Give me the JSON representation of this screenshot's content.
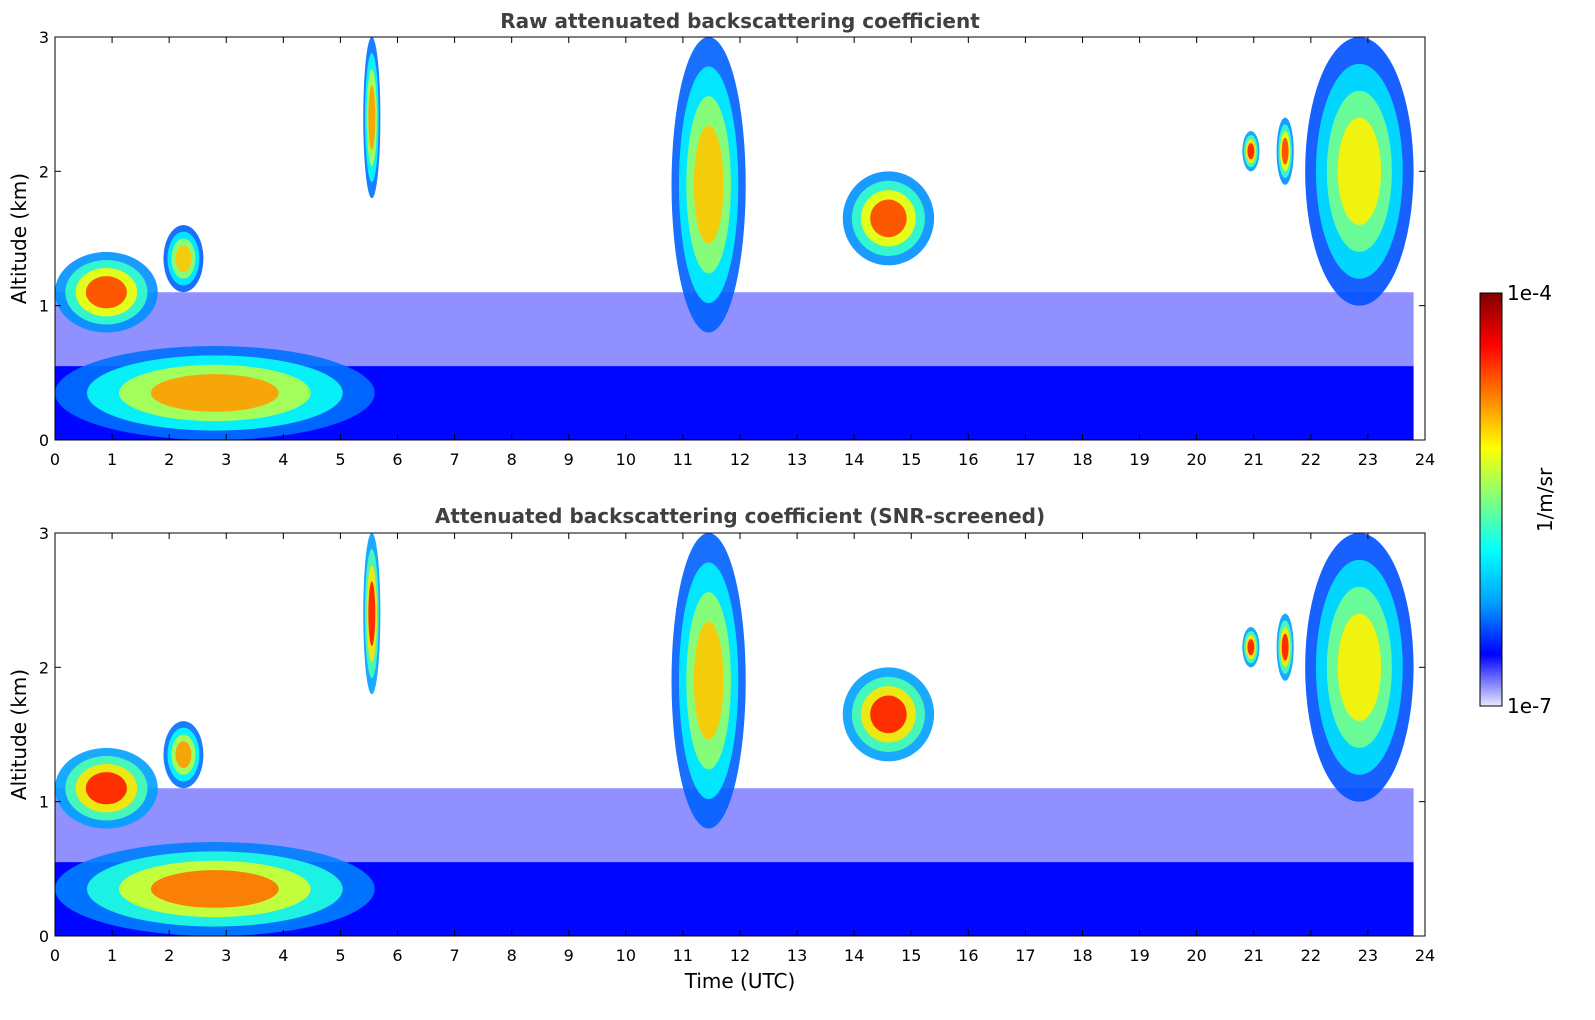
{
  "chart_data": [
    {
      "type": "heatmap",
      "title": "Raw attenuated backscattering coefficient",
      "xlabel": "",
      "ylabel": "Altitude (km)",
      "xlim": [
        0,
        24
      ],
      "ylim": [
        0,
        3
      ],
      "xticks": [
        0,
        1,
        2,
        3,
        4,
        5,
        6,
        7,
        8,
        9,
        10,
        11,
        12,
        13,
        14,
        15,
        16,
        17,
        18,
        19,
        20,
        21,
        22,
        23,
        24
      ],
      "yticks": [
        0,
        1,
        2,
        3
      ],
      "colorscale": "jet",
      "data_end_time": 23.8,
      "features": [
        {
          "name": "boundary layer aerosol",
          "t0": 0.0,
          "t1": 5.6,
          "z0": 0.0,
          "z1": 0.7,
          "level": 0.85
        },
        {
          "name": "low cloud",
          "t0": 0.0,
          "t1": 1.8,
          "z0": 0.8,
          "z1": 1.4,
          "level": 0.95
        },
        {
          "name": "cloud",
          "t0": 1.9,
          "t1": 2.6,
          "z0": 1.1,
          "z1": 1.6,
          "level": 0.8
        },
        {
          "name": "cloud",
          "t0": 5.4,
          "t1": 5.7,
          "z0": 1.8,
          "z1": 3.0,
          "level": 0.85
        },
        {
          "name": "cloud",
          "t0": 10.8,
          "t1": 12.1,
          "z0": 0.8,
          "z1": 3.0,
          "level": 0.8
        },
        {
          "name": "cloud",
          "t0": 13.8,
          "t1": 15.4,
          "z0": 1.3,
          "z1": 2.0,
          "level": 0.95
        },
        {
          "name": "cloud",
          "t0": 20.8,
          "t1": 21.1,
          "z0": 2.0,
          "z1": 2.3,
          "level": 1.0
        },
        {
          "name": "cloud",
          "t0": 21.4,
          "t1": 21.7,
          "z0": 1.9,
          "z1": 2.4,
          "level": 0.95
        },
        {
          "name": "cloud",
          "t0": 21.9,
          "t1": 23.8,
          "z0": 1.0,
          "z1": 3.0,
          "level": 0.75
        }
      ]
    },
    {
      "type": "heatmap",
      "title": "Attenuated backscattering coefficient (SNR-screened)",
      "xlabel": "Time (UTC)",
      "ylabel": "Altitude (km)",
      "xlim": [
        0,
        24
      ],
      "ylim": [
        0,
        3
      ],
      "xticks": [
        0,
        1,
        2,
        3,
        4,
        5,
        6,
        7,
        8,
        9,
        10,
        11,
        12,
        13,
        14,
        15,
        16,
        17,
        18,
        19,
        20,
        21,
        22,
        23,
        24
      ],
      "yticks": [
        0,
        1,
        2,
        3
      ],
      "colorscale": "jet",
      "data_end_time": 23.8,
      "features": [
        {
          "name": "boundary layer aerosol",
          "t0": 0.0,
          "t1": 5.6,
          "z0": 0.0,
          "z1": 0.7,
          "level": 0.9
        },
        {
          "name": "low cloud",
          "t0": 0.0,
          "t1": 1.8,
          "z0": 0.8,
          "z1": 1.4,
          "level": 1.0
        },
        {
          "name": "cloud",
          "t0": 1.9,
          "t1": 2.6,
          "z0": 1.1,
          "z1": 1.6,
          "level": 0.85
        },
        {
          "name": "cloud",
          "t0": 5.4,
          "t1": 5.7,
          "z0": 1.8,
          "z1": 3.0,
          "level": 1.0
        },
        {
          "name": "cloud",
          "t0": 10.8,
          "t1": 12.1,
          "z0": 0.8,
          "z1": 3.0,
          "level": 0.8
        },
        {
          "name": "cloud",
          "t0": 13.8,
          "t1": 15.4,
          "z0": 1.3,
          "z1": 2.0,
          "level": 1.0
        },
        {
          "name": "cloud",
          "t0": 20.8,
          "t1": 21.1,
          "z0": 2.0,
          "z1": 2.3,
          "level": 1.0
        },
        {
          "name": "cloud",
          "t0": 21.4,
          "t1": 21.7,
          "z0": 1.9,
          "z1": 2.4,
          "level": 1.0
        },
        {
          "name": "cloud",
          "t0": 21.9,
          "t1": 23.8,
          "z0": 1.0,
          "z1": 3.0,
          "level": 0.75
        }
      ]
    }
  ],
  "colorbar": {
    "label": "1/m/sr",
    "max_label": "1e-4",
    "min_label": "1e-7",
    "colors": [
      "#e8e8ff",
      "#0000ff",
      "#00a0ff",
      "#00ffff",
      "#80ff80",
      "#ffff00",
      "#ff8000",
      "#ff0000",
      "#800000"
    ]
  }
}
